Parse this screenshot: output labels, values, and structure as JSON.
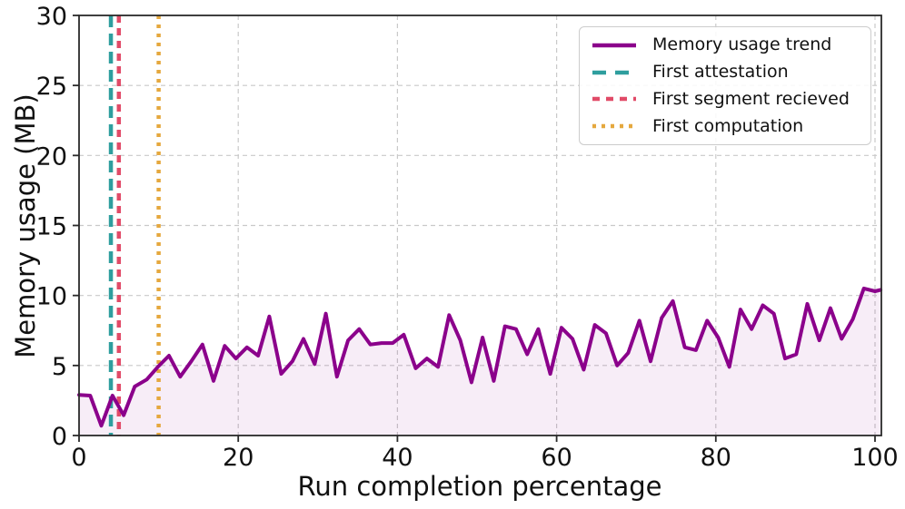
{
  "legend": {
    "items": [
      {
        "label": "Memory usage trend",
        "color": "#8B008B",
        "dash": ""
      },
      {
        "label": "First attestation",
        "color": "#2E9E9E",
        "dash": "15,10"
      },
      {
        "label": "First segment recieved",
        "color": "#E14B68",
        "dash": "8,7"
      },
      {
        "label": "First computation",
        "color": "#E5A83E",
        "dash": "4,6"
      }
    ]
  },
  "chart_data": {
    "type": "area",
    "xlabel": "Run completion percentage",
    "ylabel": "Memory usage (MB)",
    "xlim": [
      0,
      100.8
    ],
    "ylim": [
      0,
      30
    ],
    "xticks": [
      0,
      20,
      40,
      60,
      80,
      100
    ],
    "yticks": [
      0,
      5,
      10,
      15,
      20,
      25,
      30
    ],
    "grid": true,
    "legend_position": "upper right",
    "series": [
      {
        "name": "Memory usage trend",
        "color": "#8B008B",
        "fill_color": "#8B008B",
        "fill_opacity": 0.07,
        "x": [
          0,
          1.4,
          2.8,
          4.2,
          5.6,
          7.0,
          8.5,
          9.9,
          11.3,
          12.7,
          14.1,
          15.5,
          16.9,
          18.3,
          19.7,
          21.1,
          22.5,
          23.9,
          25.4,
          26.8,
          28.2,
          29.6,
          31.0,
          32.4,
          33.8,
          35.2,
          36.6,
          38.0,
          39.4,
          40.8,
          42.3,
          43.7,
          45.1,
          46.5,
          47.9,
          49.3,
          50.7,
          52.1,
          53.5,
          54.9,
          56.3,
          57.7,
          59.2,
          60.6,
          62.0,
          63.4,
          64.8,
          66.2,
          67.6,
          69.0,
          70.4,
          71.8,
          73.2,
          74.6,
          76.1,
          77.5,
          78.9,
          80.3,
          81.7,
          83.1,
          84.5,
          85.9,
          87.3,
          88.7,
          90.1,
          91.5,
          93.0,
          94.4,
          95.8,
          97.2,
          98.6,
          100.0,
          100.7
        ],
        "values": [
          2.9,
          2.85,
          0.7,
          2.85,
          1.45,
          3.5,
          4.0,
          4.9,
          5.7,
          4.2,
          5.3,
          6.5,
          3.9,
          6.4,
          5.5,
          6.3,
          5.7,
          8.5,
          4.4,
          5.3,
          6.9,
          5.1,
          8.7,
          4.2,
          6.8,
          7.6,
          6.5,
          6.6,
          6.6,
          7.2,
          4.8,
          5.5,
          4.9,
          8.6,
          6.8,
          3.8,
          7.0,
          3.9,
          7.8,
          7.6,
          5.8,
          7.6,
          4.4,
          7.7,
          6.9,
          4.7,
          7.9,
          7.3,
          5.0,
          5.9,
          8.2,
          5.3,
          8.4,
          9.6,
          6.3,
          6.1,
          8.2,
          7.0,
          4.9,
          9.0,
          7.6,
          9.3,
          8.7,
          5.5,
          5.8,
          9.4,
          6.8,
          9.1,
          6.9,
          8.3,
          10.5,
          10.3,
          10.4
        ]
      }
    ],
    "events": [
      {
        "name": "First attestation",
        "x": 4,
        "color": "#2E9E9E",
        "style": "dashed",
        "dash": "13,7"
      },
      {
        "name": "First segment recieved",
        "x": 5,
        "color": "#E14B68",
        "style": "dashed",
        "dash": "8,6"
      },
      {
        "name": "First computation",
        "x": 10,
        "color": "#E5A83E",
        "style": "dotted",
        "dash": "4,6"
      }
    ]
  }
}
